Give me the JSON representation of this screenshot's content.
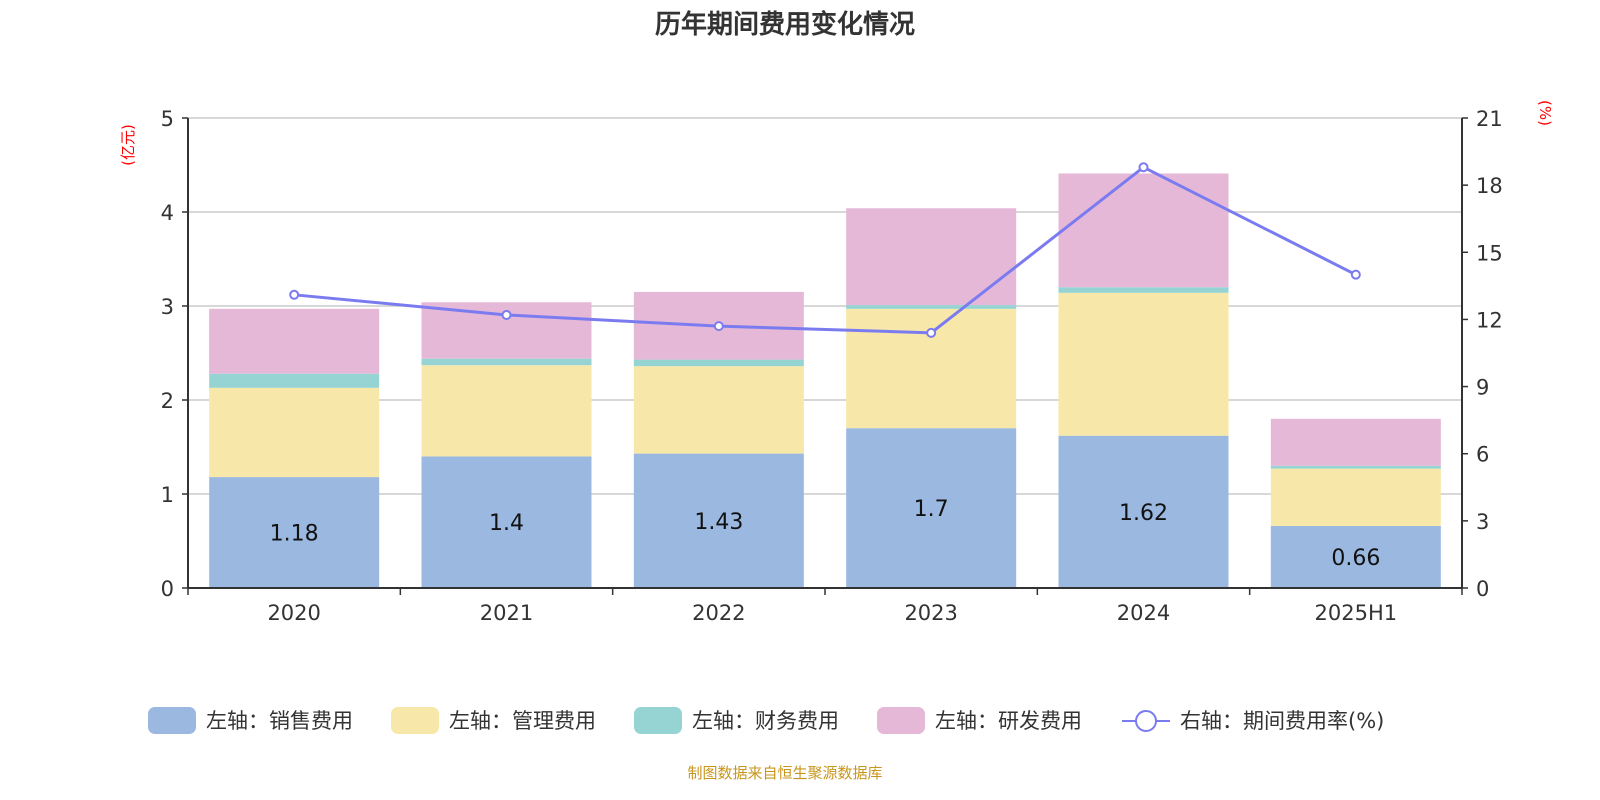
{
  "chart_data": {
    "type": "bar",
    "title": "历年期间费用变化情况",
    "categories": [
      "2020",
      "2021",
      "2022",
      "2023",
      "2024",
      "2025H1"
    ],
    "left_axis": {
      "label": "(亿元)",
      "ylim": [
        0,
        5
      ],
      "ticks": [
        "0",
        "1",
        "2",
        "3",
        "4",
        "5"
      ]
    },
    "right_axis": {
      "label": "(%)",
      "ylim": [
        0,
        21
      ],
      "ticks": [
        "0",
        "3",
        "6",
        "9",
        "12",
        "15",
        "18",
        "21"
      ]
    },
    "grid": true,
    "legend_position": "bottom",
    "series": [
      {
        "name": "左轴：销售费用",
        "type": "bar",
        "stack": true,
        "color": "#9bb8e1",
        "values": [
          1.18,
          1.4,
          1.43,
          1.7,
          1.62,
          0.66
        ],
        "labels": [
          "1.18",
          "1.4",
          "1.43",
          "1.7",
          "1.62",
          "0.66"
        ]
      },
      {
        "name": "左轴：管理费用",
        "type": "bar",
        "stack": true,
        "color": "#f7e7a8",
        "values": [
          0.95,
          0.97,
          0.93,
          1.27,
          1.52,
          0.61
        ]
      },
      {
        "name": "左轴：财务费用",
        "type": "bar",
        "stack": true,
        "color": "#96d4d4",
        "values": [
          0.15,
          0.07,
          0.07,
          0.04,
          0.06,
          0.03
        ]
      },
      {
        "name": "左轴：研发费用",
        "type": "bar",
        "stack": true,
        "color": "#e6b8d8",
        "values": [
          0.69,
          0.6,
          0.72,
          1.03,
          1.21,
          0.5
        ]
      },
      {
        "name": "右轴：期间费用率(%)",
        "type": "line",
        "axis": "right",
        "color": "#7b7bf0",
        "values": [
          13.1,
          12.2,
          11.7,
          11.4,
          18.8,
          14.0
        ]
      }
    ]
  },
  "footer": "制图数据来自恒生聚源数据库"
}
